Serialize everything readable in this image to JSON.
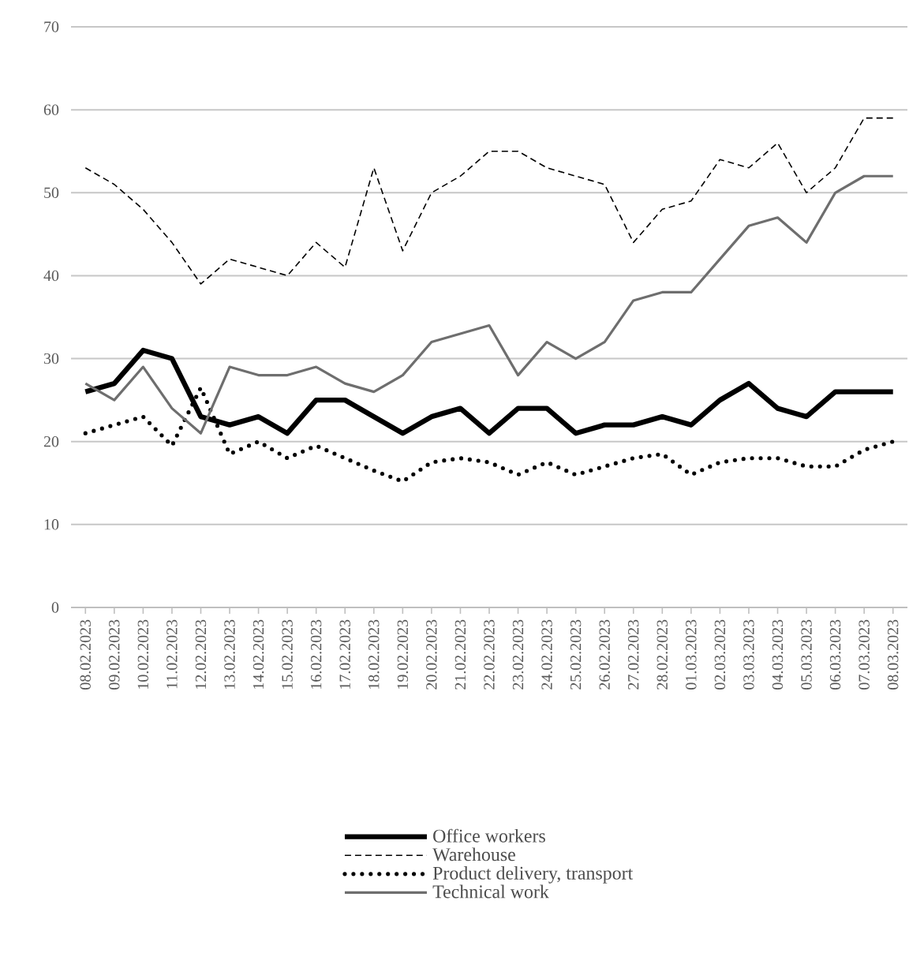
{
  "chart_data": {
    "type": "line",
    "categories": [
      "08.02.2023",
      "09.02.2023",
      "10.02.2023",
      "11.02.2023",
      "12.02.2023",
      "13.02.2023",
      "14.02.2023",
      "15.02.2023",
      "16.02.2023",
      "17.02.2023",
      "18.02.2023",
      "19.02.2023",
      "20.02.2023",
      "21.02.2023",
      "22.02.2023",
      "23.02.2023",
      "24.02.2023",
      "25.02.2023",
      "26.02.2023",
      "27.02.2023",
      "28.02.2023",
      "01.03.2023",
      "02.03.2023",
      "03.03.2023",
      "04.03.2023",
      "05.03.2023",
      "06.03.2023",
      "07.03.2023",
      "08.03.2023"
    ],
    "series": [
      {
        "name": "Office workers",
        "color": "#000000",
        "line_style": "solid",
        "values": [
          26,
          27,
          31,
          30,
          23,
          22,
          23,
          21,
          25,
          25,
          23,
          21,
          23,
          24,
          21,
          24,
          24,
          21,
          22,
          22,
          23,
          22,
          25,
          27,
          24,
          23,
          26,
          26,
          26
        ]
      },
      {
        "name": "Warehouse",
        "color": "#000000",
        "line_style": "dashed",
        "values": [
          53,
          51,
          48,
          44,
          39,
          42,
          41,
          40,
          44,
          41,
          53,
          43,
          50,
          52,
          55,
          55,
          53,
          52,
          51,
          44,
          48,
          49,
          54,
          53,
          56,
          50,
          53,
          59,
          59
        ]
      },
      {
        "name": "Product delivery, transport",
        "color": "#000000",
        "line_style": "dotted",
        "values": [
          21,
          22,
          23,
          19.5,
          26.5,
          18.5,
          20,
          18,
          19.5,
          18,
          16.5,
          15.2,
          17.5,
          18,
          17.5,
          16,
          17.5,
          16,
          17,
          18,
          18.5,
          16,
          17.5,
          18,
          18,
          17,
          17,
          19,
          20
        ]
      },
      {
        "name": "Technical work",
        "color": "#6e6e6e",
        "line_style": "solid",
        "values": [
          27,
          25,
          29,
          24,
          21,
          29,
          28,
          28,
          29,
          27,
          26,
          28,
          32,
          33,
          34,
          28,
          32,
          30,
          32,
          37,
          38,
          38,
          42,
          46,
          47,
          44,
          50,
          52,
          52
        ]
      }
    ],
    "ylim": [
      0,
      70
    ],
    "yticks": [
      0,
      10,
      20,
      30,
      40,
      50,
      60,
      70
    ],
    "grid": "y",
    "legend": "bottom",
    "marker": "none"
  }
}
